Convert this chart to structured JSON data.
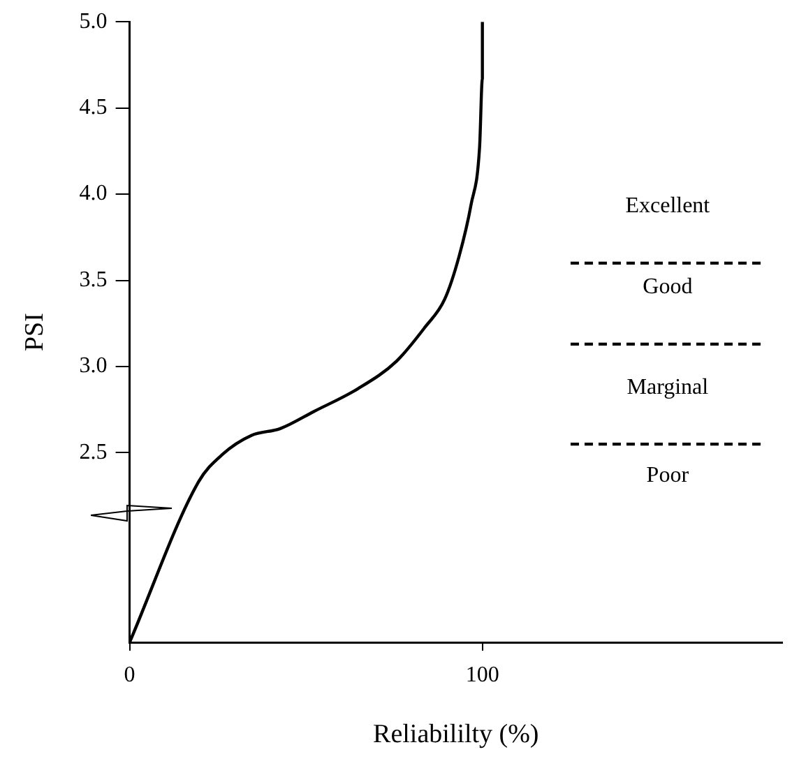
{
  "chart_data": {
    "type": "line",
    "xlabel": "Reliabililty (%)",
    "ylabel": "PSI",
    "xlim": [
      0,
      185
    ],
    "xticks": [
      0,
      100
    ],
    "ylim": [
      1.4,
      5.0
    ],
    "yticks": [
      {
        "value": 2.5,
        "label": "2.5"
      },
      {
        "value": 3.0,
        "label": "3.0"
      },
      {
        "value": 3.5,
        "label": "3.5"
      },
      {
        "value": 4.0,
        "label": "4.0"
      },
      {
        "value": 4.5,
        "label": "4.5"
      },
      {
        "value": 5.0,
        "label": "5.0"
      }
    ],
    "grid": false,
    "legend": false,
    "marker": "none",
    "series": [
      {
        "color": "#000000",
        "x": [
          0,
          19.5,
          26.3,
          34.5,
          42.7,
          52.3,
          64.6,
          75.6,
          83.8,
          89.3,
          93.4,
          96.8,
          99.2,
          100,
          100
        ],
        "values": [
          1.4,
          2.33,
          2.49,
          2.6,
          2.64,
          2.74,
          2.87,
          3.03,
          3.23,
          3.39,
          3.64,
          3.94,
          4.27,
          4.67,
          5.0
        ]
      },
      {
        "color": "#000000",
        "line_style": "dashed",
        "x": [
          125,
          180
        ],
        "values": [
          3.6,
          3.6
        ]
      },
      {
        "color": "#000000",
        "line_style": "dashed",
        "x": [
          125,
          180
        ],
        "values": [
          3.13,
          3.13
        ]
      },
      {
        "color": "#000000",
        "line_style": "dashed",
        "x": [
          125,
          180
        ],
        "values": [
          2.55,
          2.55
        ]
      }
    ],
    "annotations": [
      "Excellent",
      "Good",
      "Marginal",
      "Poor"
    ]
  }
}
